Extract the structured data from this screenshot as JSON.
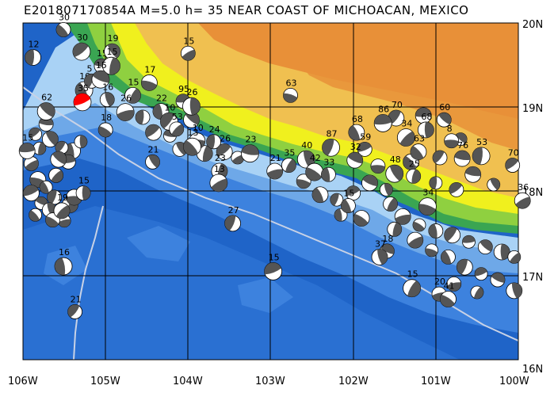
{
  "title": "E201807170854A  M=5.0  h= 35  NEAR COAST OF MICHOACAN, MEXICO",
  "lon_ticks": [
    "106W",
    "105W",
    "104W",
    "103W",
    "102W",
    "101W",
    "100W"
  ],
  "lat_ticks": [
    "20N",
    "19N",
    "18N",
    "17N",
    "16N"
  ],
  "lon_range": [
    -106,
    -100
  ],
  "lat_range": [
    16,
    20
  ],
  "colors": {
    "deep_ocean": "#1f64c8",
    "mid_ocean": "#3d82de",
    "shelf": "#6ea8e8",
    "shallow": "#a9d2f5",
    "lowland": "#3aa552",
    "plain": "#8fd040",
    "hills": "#f0f01e",
    "highland": "#f0c050",
    "plateau": "#e89038",
    "grid": "#000000",
    "trench": "#c8d2e6",
    "event_highlight": "#ff0000",
    "mechanism_fill": "#555555"
  },
  "events": [
    {
      "label": "30",
      "lon": -105.51,
      "lat": 19.92,
      "main": false
    },
    {
      "label": "12",
      "lon": -105.88,
      "lat": 19.59,
      "main": false
    },
    {
      "label": "30",
      "lon": -105.29,
      "lat": 19.66,
      "main": false
    },
    {
      "label": "15",
      "lon": -105.05,
      "lat": 19.49,
      "main": false
    },
    {
      "label": "19",
      "lon": -104.92,
      "lat": 19.66,
      "main": false
    },
    {
      "label": "15",
      "lon": -104.93,
      "lat": 19.49,
      "main": false
    },
    {
      "label": "15",
      "lon": -104.0,
      "lat": 19.64,
      "main": false
    },
    {
      "label": "17",
      "lon": -104.47,
      "lat": 19.29,
      "main": false
    },
    {
      "label": "10",
      "lon": -105.26,
      "lat": 19.2,
      "main": false
    },
    {
      "label": "5",
      "lon": -105.17,
      "lat": 19.31,
      "main": false
    },
    {
      "label": "35",
      "lon": -105.28,
      "lat": 19.06,
      "main": true
    },
    {
      "label": "15",
      "lon": -105.06,
      "lat": 19.33,
      "main": false
    },
    {
      "label": "16",
      "lon": -104.98,
      "lat": 19.09,
      "main": false
    },
    {
      "label": "15",
      "lon": -104.67,
      "lat": 19.14,
      "main": false
    },
    {
      "label": "26",
      "lon": -104.76,
      "lat": 18.94,
      "main": false
    },
    {
      "label": "18",
      "lon": -105.0,
      "lat": 18.73,
      "main": false
    },
    {
      "label": "22",
      "lon": -104.33,
      "lat": 18.95,
      "main": false
    },
    {
      "label": "10",
      "lon": -104.23,
      "lat": 18.83,
      "main": false
    },
    {
      "label": "95",
      "lon": -104.06,
      "lat": 19.07,
      "main": false
    },
    {
      "label": "15",
      "lon": -103.96,
      "lat": 18.85,
      "main": false
    },
    {
      "label": "26",
      "lon": -103.96,
      "lat": 19.01,
      "main": false
    },
    {
      "label": "53",
      "lon": -104.14,
      "lat": 18.74,
      "main": false
    },
    {
      "label": "10",
      "lon": -103.89,
      "lat": 18.6,
      "main": false
    },
    {
      "label": "13",
      "lon": -103.95,
      "lat": 18.53,
      "main": false
    },
    {
      "label": "24",
      "lon": -103.69,
      "lat": 18.59,
      "main": false
    },
    {
      "label": "26",
      "lon": -103.56,
      "lat": 18.47,
      "main": false
    },
    {
      "label": "23",
      "lon": -103.25,
      "lat": 18.45,
      "main": false
    },
    {
      "label": "21",
      "lon": -104.43,
      "lat": 18.35,
      "main": false
    },
    {
      "label": "23",
      "lon": -103.62,
      "lat": 18.24,
      "main": false
    },
    {
      "label": "13",
      "lon": -103.63,
      "lat": 18.1,
      "main": false
    },
    {
      "label": "63",
      "lon": -102.76,
      "lat": 19.14,
      "main": false
    },
    {
      "label": "68",
      "lon": -101.96,
      "lat": 18.7,
      "main": false
    },
    {
      "label": "87",
      "lon": -102.27,
      "lat": 18.52,
      "main": false
    },
    {
      "label": "59",
      "lon": -101.86,
      "lat": 18.5,
      "main": false
    },
    {
      "label": "32",
      "lon": -101.98,
      "lat": 18.37,
      "main": false
    },
    {
      "label": "40",
      "lon": -102.57,
      "lat": 18.38,
      "main": false
    },
    {
      "label": "35",
      "lon": -102.78,
      "lat": 18.31,
      "main": false
    },
    {
      "label": "21",
      "lon": -102.95,
      "lat": 18.24,
      "main": false
    },
    {
      "label": "42",
      "lon": -102.47,
      "lat": 18.23,
      "main": false
    },
    {
      "label": "33",
      "lon": -102.3,
      "lat": 18.2,
      "main": false
    },
    {
      "label": "70",
      "lon": -101.48,
      "lat": 18.87,
      "main": false
    },
    {
      "label": "86",
      "lon": -101.64,
      "lat": 18.81,
      "main": false
    },
    {
      "label": "60",
      "lon": -100.9,
      "lat": 18.85,
      "main": false
    },
    {
      "label": "68",
      "lon": -101.12,
      "lat": 18.73,
      "main": false
    },
    {
      "label": "34",
      "lon": -101.36,
      "lat": 18.64,
      "main": false
    },
    {
      "label": "8",
      "lon": -100.81,
      "lat": 18.6,
      "main": false
    },
    {
      "label": "63",
      "lon": -101.21,
      "lat": 18.47,
      "main": false
    },
    {
      "label": "53",
      "lon": -100.45,
      "lat": 18.42,
      "main": false
    },
    {
      "label": "70",
      "lon": -100.07,
      "lat": 18.31,
      "main": false
    },
    {
      "label": "76",
      "lon": -100.68,
      "lat": 18.39,
      "main": false
    },
    {
      "label": "48",
      "lon": -101.5,
      "lat": 18.21,
      "main": false
    },
    {
      "label": "25",
      "lon": -101.27,
      "lat": 18.18,
      "main": false
    },
    {
      "label": "36",
      "lon": -99.95,
      "lat": 17.89,
      "main": false
    },
    {
      "label": "34",
      "lon": -101.1,
      "lat": 17.82,
      "main": false
    },
    {
      "label": "15",
      "lon": -102.06,
      "lat": 17.83,
      "main": false
    },
    {
      "label": "27",
      "lon": -103.46,
      "lat": 17.62,
      "main": false
    },
    {
      "label": "15",
      "lon": -102.97,
      "lat": 17.05,
      "main": false
    },
    {
      "label": "18",
      "lon": -101.59,
      "lat": 17.29,
      "main": false
    },
    {
      "label": "37",
      "lon": -101.68,
      "lat": 17.22,
      "main": false
    },
    {
      "label": "15",
      "lon": -101.29,
      "lat": 16.85,
      "main": false
    },
    {
      "label": "20",
      "lon": -100.96,
      "lat": 16.78,
      "main": false
    },
    {
      "label": "41",
      "lon": -100.85,
      "lat": 16.72,
      "main": false
    },
    {
      "label": "16",
      "lon": -105.51,
      "lat": 17.11,
      "main": false
    },
    {
      "label": "21",
      "lon": -105.37,
      "lat": 16.57,
      "main": false
    },
    {
      "label": "15",
      "lon": -105.95,
      "lat": 18.48,
      "main": false
    },
    {
      "label": "62",
      "lon": -105.72,
      "lat": 18.95,
      "main": false
    },
    {
      "label": "15",
      "lon": -105.27,
      "lat": 17.98,
      "main": false
    },
    {
      "label": "19",
      "lon": -105.53,
      "lat": 17.77,
      "main": false
    }
  ],
  "cluster_mechanisms": [
    [
      -105.85,
      18.68
    ],
    [
      -105.72,
      18.8
    ],
    [
      -105.67,
      18.62
    ],
    [
      -105.8,
      18.51
    ],
    [
      -105.9,
      18.33
    ],
    [
      -105.82,
      18.14
    ],
    [
      -105.72,
      18.05
    ],
    [
      -105.62,
      17.93
    ],
    [
      -105.9,
      17.98
    ],
    [
      -105.78,
      17.86
    ],
    [
      -105.68,
      17.78
    ],
    [
      -105.43,
      17.84
    ],
    [
      -105.5,
      17.65
    ],
    [
      -105.64,
      17.66
    ],
    [
      -105.4,
      18.48
    ],
    [
      -105.53,
      18.52
    ],
    [
      -105.45,
      18.35
    ],
    [
      -105.57,
      18.38
    ],
    [
      -105.3,
      18.59
    ],
    [
      -105.6,
      18.19
    ],
    [
      -105.38,
      17.93
    ],
    [
      -105.85,
      17.72
    ],
    [
      -104.55,
      18.88
    ],
    [
      -104.42,
      18.7
    ],
    [
      -104.22,
      18.66
    ],
    [
      -104.1,
      18.5
    ],
    [
      -103.8,
      18.45
    ],
    [
      -103.4,
      18.4
    ],
    [
      -102.6,
      18.12
    ],
    [
      -102.4,
      17.96
    ],
    [
      -102.2,
      17.9
    ],
    [
      -102.0,
      17.98
    ],
    [
      -101.8,
      18.1
    ],
    [
      -101.6,
      18.02
    ],
    [
      -101.55,
      17.85
    ],
    [
      -101.4,
      17.7
    ],
    [
      -101.2,
      17.6
    ],
    [
      -101.0,
      17.53
    ],
    [
      -100.8,
      17.48
    ],
    [
      -100.6,
      17.4
    ],
    [
      -100.4,
      17.34
    ],
    [
      -100.2,
      17.28
    ],
    [
      -100.05,
      17.22
    ],
    [
      -101.7,
      18.3
    ],
    [
      -101.3,
      18.35
    ],
    [
      -101.0,
      18.1
    ],
    [
      -100.75,
      18.02
    ],
    [
      -100.55,
      18.2
    ],
    [
      -100.3,
      18.08
    ],
    [
      -101.5,
      17.55
    ],
    [
      -101.25,
      17.42
    ],
    [
      -101.05,
      17.3
    ],
    [
      -100.85,
      17.22
    ],
    [
      -100.65,
      17.1
    ],
    [
      -100.45,
      17.02
    ],
    [
      -100.25,
      16.95
    ],
    [
      -100.05,
      16.82
    ],
    [
      -100.5,
      16.8
    ],
    [
      -100.78,
      16.9
    ],
    [
      -101.9,
      17.68
    ],
    [
      -102.15,
      17.72
    ],
    [
      -100.95,
      18.4
    ],
    [
      -101.15,
      18.9
    ],
    [
      -100.7,
      18.62
    ]
  ]
}
